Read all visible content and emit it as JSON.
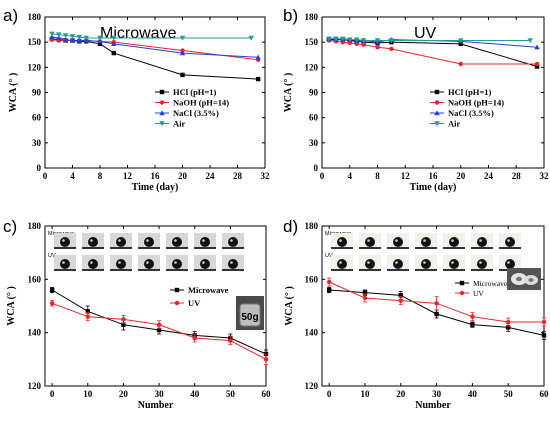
{
  "chart_data": [
    {
      "panel": "a)",
      "title": "Microwave",
      "type": "line",
      "xlabel": "Time (day)",
      "ylabel": "WCA (° )",
      "xlim": [
        0,
        32
      ],
      "ylim": [
        0,
        180
      ],
      "xticks": [
        0,
        4,
        8,
        12,
        16,
        20,
        24,
        28,
        32
      ],
      "yticks": [
        0,
        30,
        60,
        90,
        120,
        150,
        180
      ],
      "legend_position": "bottom-right",
      "series": [
        {
          "name": "HCl (pH=1)",
          "color": "#000000",
          "marker": "square",
          "x": [
            1,
            2,
            3,
            4,
            5,
            6,
            8,
            10,
            20,
            31
          ],
          "y": [
            154,
            153,
            152,
            152,
            151,
            151,
            148,
            137,
            111,
            106
          ]
        },
        {
          "name": "NaOH (pH=14)",
          "color": "#e8262d",
          "marker": "circle",
          "x": [
            1,
            2,
            3,
            4,
            5,
            6,
            8,
            10,
            20,
            31
          ],
          "y": [
            153,
            152,
            152,
            152,
            152,
            152,
            151,
            150,
            140,
            129
          ]
        },
        {
          "name": "NaCl (3.5%)",
          "color": "#2a3fd6",
          "marker": "triangle-up",
          "x": [
            1,
            2,
            3,
            4,
            5,
            6,
            8,
            10,
            20,
            31
          ],
          "y": [
            156,
            155,
            153,
            152,
            152,
            152,
            151,
            148,
            137,
            132
          ]
        },
        {
          "name": "Air",
          "color": "#1f9e96",
          "marker": "triangle-down",
          "x": [
            1,
            2,
            3,
            4,
            5,
            6,
            8,
            10,
            20,
            30
          ],
          "y": [
            160,
            159,
            158,
            157,
            156,
            155,
            155,
            155,
            155,
            155
          ]
        }
      ]
    },
    {
      "panel": "b)",
      "title": "UV",
      "type": "line",
      "xlabel": "Time (day)",
      "ylabel": "WCA (° )",
      "xlim": [
        0,
        32
      ],
      "ylim": [
        0,
        180
      ],
      "xticks": [
        0,
        4,
        8,
        12,
        16,
        20,
        24,
        28,
        32
      ],
      "yticks": [
        0,
        30,
        60,
        90,
        120,
        150,
        180
      ],
      "legend_position": "bottom-right",
      "series": [
        {
          "name": "HCl (pH=1)",
          "color": "#000000",
          "marker": "square",
          "x": [
            1,
            2,
            3,
            4,
            5,
            6,
            8,
            10,
            20,
            31
          ],
          "y": [
            153,
            153,
            153,
            152,
            151,
            150,
            149,
            150,
            148,
            121
          ]
        },
        {
          "name": "NaOH (pH=14)",
          "color": "#e8262d",
          "marker": "circle",
          "x": [
            1,
            2,
            3,
            4,
            5,
            6,
            8,
            10,
            20,
            31
          ],
          "y": [
            152,
            151,
            150,
            149,
            148,
            147,
            144,
            142,
            124,
            124
          ]
        },
        {
          "name": "NaCl (3.5%)",
          "color": "#2a3fd6",
          "marker": "triangle-up",
          "x": [
            1,
            2,
            3,
            4,
            5,
            6,
            8,
            10,
            20,
            31
          ],
          "y": [
            154,
            154,
            153,
            153,
            152,
            152,
            150,
            153,
            151,
            144
          ]
        },
        {
          "name": "Air",
          "color": "#1f9e96",
          "marker": "triangle-down",
          "x": [
            1,
            2,
            3,
            4,
            5,
            6,
            8,
            10,
            20,
            30
          ],
          "y": [
            154,
            154,
            154,
            153,
            153,
            152,
            152,
            152,
            152,
            152
          ]
        }
      ]
    },
    {
      "panel": "c)",
      "type": "line",
      "xlabel": "Number",
      "ylabel": "WCA (° )",
      "xlim": [
        -2,
        60
      ],
      "ylim": [
        120,
        180
      ],
      "xticks": [
        0,
        10,
        20,
        30,
        40,
        50,
        60
      ],
      "yticks": [
        120,
        140,
        160,
        180
      ],
      "legend_position": "center-right",
      "inset_labels": [
        "Microwave",
        "UV"
      ],
      "photo_label": "50g",
      "series": [
        {
          "name": "Microwave",
          "color": "#000000",
          "marker": "square",
          "x": [
            0,
            10,
            20,
            30,
            40,
            50,
            60
          ],
          "y": [
            156,
            148,
            143,
            141,
            139,
            138,
            132
          ],
          "err": [
            1,
            2,
            2,
            1.5,
            1.5,
            1.5,
            1.5
          ]
        },
        {
          "name": "UV",
          "color": "#e8262d",
          "marker": "circle",
          "x": [
            0,
            10,
            20,
            30,
            40,
            50,
            60
          ],
          "y": [
            151,
            146,
            145,
            143,
            138,
            137,
            130
          ],
          "err": [
            1,
            1.5,
            1.5,
            1.5,
            1.5,
            1.5,
            2
          ]
        }
      ]
    },
    {
      "panel": "d)",
      "type": "line",
      "xlabel": "Number",
      "ylabel": "WCA (° )",
      "xlim": [
        -2,
        60
      ],
      "ylim": [
        120,
        180
      ],
      "xticks": [
        0,
        10,
        20,
        30,
        40,
        50,
        60
      ],
      "yticks": [
        120,
        140,
        160,
        180
      ],
      "legend_position": "center-right",
      "inset_labels": [
        "Microwave",
        "UV"
      ],
      "series": [
        {
          "name": "Microwave",
          "color": "#000000",
          "marker": "square",
          "x": [
            0,
            10,
            20,
            30,
            40,
            50,
            60
          ],
          "y": [
            156,
            155,
            154,
            147,
            143,
            142,
            139
          ],
          "err": [
            1,
            1,
            1.5,
            1.5,
            1,
            1.5,
            1.5
          ]
        },
        {
          "name": "UV",
          "color": "#e8262d",
          "marker": "circle",
          "x": [
            0,
            10,
            20,
            30,
            40,
            50,
            60
          ],
          "y": [
            159,
            153,
            152,
            151,
            146,
            144,
            144
          ],
          "err": [
            1.5,
            1.5,
            1.5,
            2.5,
            1.5,
            1.5,
            1.5
          ]
        }
      ]
    }
  ]
}
